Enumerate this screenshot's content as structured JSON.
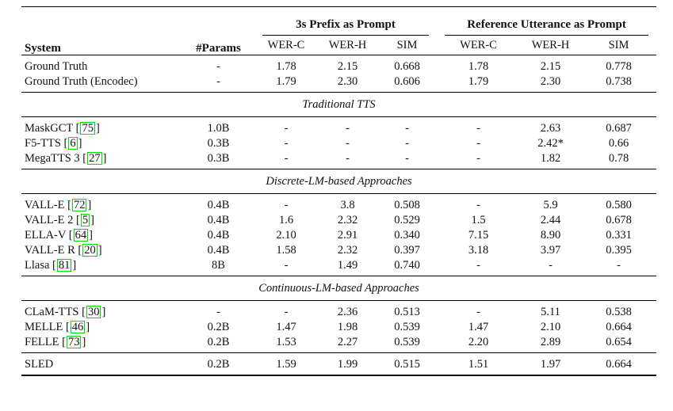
{
  "colors": {
    "citation_box_green": "#00dd00",
    "text": "#111111",
    "rule": "#000000",
    "background": "#ffffff"
  },
  "table": {
    "columns": {
      "system": "System",
      "params": "#Params",
      "groups": [
        {
          "label": "3s Prefix as Prompt",
          "subcols": [
            "WER-C",
            "WER-H",
            "SIM"
          ]
        },
        {
          "label": "Reference Utterance as Prompt",
          "subcols": [
            "WER-C",
            "WER-H",
            "SIM"
          ]
        }
      ]
    },
    "sections": [
      {
        "title": "",
        "rows": [
          {
            "system": "Ground Truth",
            "cite": "",
            "params": "-",
            "values": [
              "1.78",
              "2.15",
              "0.668",
              "1.78",
              "2.15",
              "0.778"
            ]
          },
          {
            "system": "Ground Truth (Encodec)",
            "cite": "",
            "params": "-",
            "values": [
              "1.79",
              "2.30",
              "0.606",
              "1.79",
              "2.30",
              "0.738"
            ]
          }
        ]
      },
      {
        "title": "Traditional TTS",
        "rows": [
          {
            "system": "MaskGCT",
            "cite": "75",
            "params": "1.0B",
            "values": [
              "-",
              "-",
              "-",
              "-",
              "2.63",
              "0.687"
            ]
          },
          {
            "system": "F5-TTS",
            "cite": "6",
            "params": "0.3B",
            "values": [
              "-",
              "-",
              "-",
              "-",
              "2.42*",
              "0.66"
            ]
          },
          {
            "system": "MegaTTS 3",
            "cite": "27",
            "params": "0.3B",
            "values": [
              "-",
              "-",
              "-",
              "-",
              "1.82",
              "0.78"
            ]
          }
        ]
      },
      {
        "title": "Discrete-LM-based Approaches",
        "rows": [
          {
            "system": "VALL-E",
            "cite": "72",
            "params": "0.4B",
            "values": [
              "-",
              "3.8",
              "0.508",
              "-",
              "5.9",
              "0.580"
            ]
          },
          {
            "system": "VALL-E 2",
            "cite": "5",
            "params": "0.4B",
            "values": [
              "1.6",
              "2.32",
              "0.529",
              "1.5",
              "2.44",
              "0.678"
            ]
          },
          {
            "system": "ELLA-V",
            "cite": "64",
            "params": "0.4B",
            "values": [
              "2.10",
              "2.91",
              "0.340",
              "7.15",
              "8.90",
              "0.331"
            ]
          },
          {
            "system": "VALL-E R",
            "cite": "20",
            "params": "0.4B",
            "values": [
              "1.58",
              "2.32",
              "0.397",
              "3.18",
              "3.97",
              "0.395"
            ]
          },
          {
            "system": "Llasa",
            "cite": "81",
            "params": "8B",
            "values": [
              "-",
              "1.49",
              "0.740",
              "-",
              "-",
              "-"
            ]
          }
        ]
      },
      {
        "title": "Continuous-LM-based Approaches",
        "rows": [
          {
            "system": "CLaM-TTS",
            "cite": "30",
            "params": "-",
            "values": [
              "-",
              "2.36",
              "0.513",
              "-",
              "5.11",
              "0.538"
            ]
          },
          {
            "system": "MELLE",
            "cite": "46",
            "params": "0.2B",
            "values": [
              "1.47",
              "1.98",
              "0.539",
              "1.47",
              "2.10",
              "0.664"
            ]
          },
          {
            "system": "FELLE",
            "cite": "73",
            "params": "0.2B",
            "values": [
              "1.53",
              "2.27",
              "0.539",
              "2.20",
              "2.89",
              "0.654"
            ]
          }
        ]
      },
      {
        "title": "",
        "rule_above": true,
        "rows": [
          {
            "system": "SLED",
            "cite": "",
            "params": "0.2B",
            "values": [
              "1.59",
              "1.99",
              "0.515",
              "1.51",
              "1.97",
              "0.664"
            ]
          }
        ]
      }
    ]
  }
}
